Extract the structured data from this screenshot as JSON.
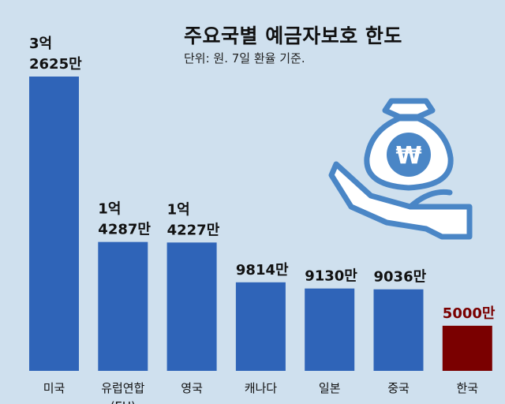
{
  "title": "주요국별 예금자보호 한도",
  "subtitle": "단위: 원. 7일 환율 기준.",
  "colors": {
    "background": "#cfe0ee",
    "bar": "#2f64b8",
    "highlight_bar": "#7a0000",
    "icon_stroke": "#4a86c6",
    "icon_fill": "#ffffff"
  },
  "icon": "money-bag-hand-icon",
  "chart_data": {
    "type": "bar",
    "title": "주요국별 예금자보호 한도",
    "subtitle": "단위: 원. 7일 환율 기준.",
    "categories": [
      "미국",
      "유럽연합",
      "영국",
      "캐나다",
      "일본",
      "중국",
      "한국"
    ],
    "category_sub": [
      "",
      "(EU)",
      "",
      "",
      "",
      "",
      ""
    ],
    "values": [
      326250000,
      142870000,
      142270000,
      98140000,
      91300000,
      90360000,
      50000000
    ],
    "value_labels": [
      [
        "3억",
        "2625만"
      ],
      [
        "1억",
        "4287만"
      ],
      [
        "1억",
        "4227만"
      ],
      [
        "9814만"
      ],
      [
        "9130만"
      ],
      [
        "9036만"
      ],
      [
        "5000만"
      ]
    ],
    "highlight": "한국",
    "grid": false
  }
}
